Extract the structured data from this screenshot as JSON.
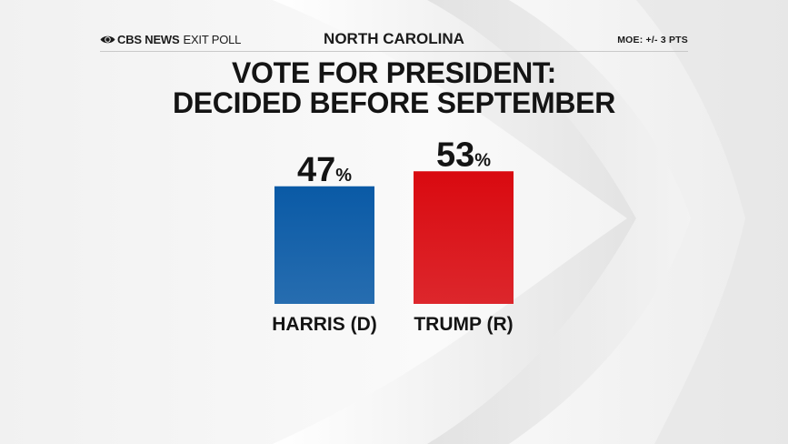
{
  "header": {
    "brand_name": "CBS NEWS",
    "brand_sub": "EXIT POLL",
    "state": "NORTH CAROLINA",
    "moe": "MOE: +/- 3 PTS"
  },
  "title_line1": "VOTE FOR PRESIDENT:",
  "title_line2": "DECIDED BEFORE SEPTEMBER",
  "colors": {
    "harris": "#0a5aa6",
    "trump": "#d90a10"
  },
  "chart_data": {
    "type": "bar",
    "categories": [
      "HARRIS (D)",
      "TRUMP (R)"
    ],
    "values": [
      47,
      53
    ],
    "value_labels": [
      "47",
      "53"
    ],
    "value_suffix": "%",
    "title": "VOTE FOR PRESIDENT: DECIDED BEFORE SEPTEMBER",
    "xlabel": "",
    "ylabel": "",
    "ylim": [
      0,
      100
    ],
    "grid": false,
    "legend": "none"
  }
}
